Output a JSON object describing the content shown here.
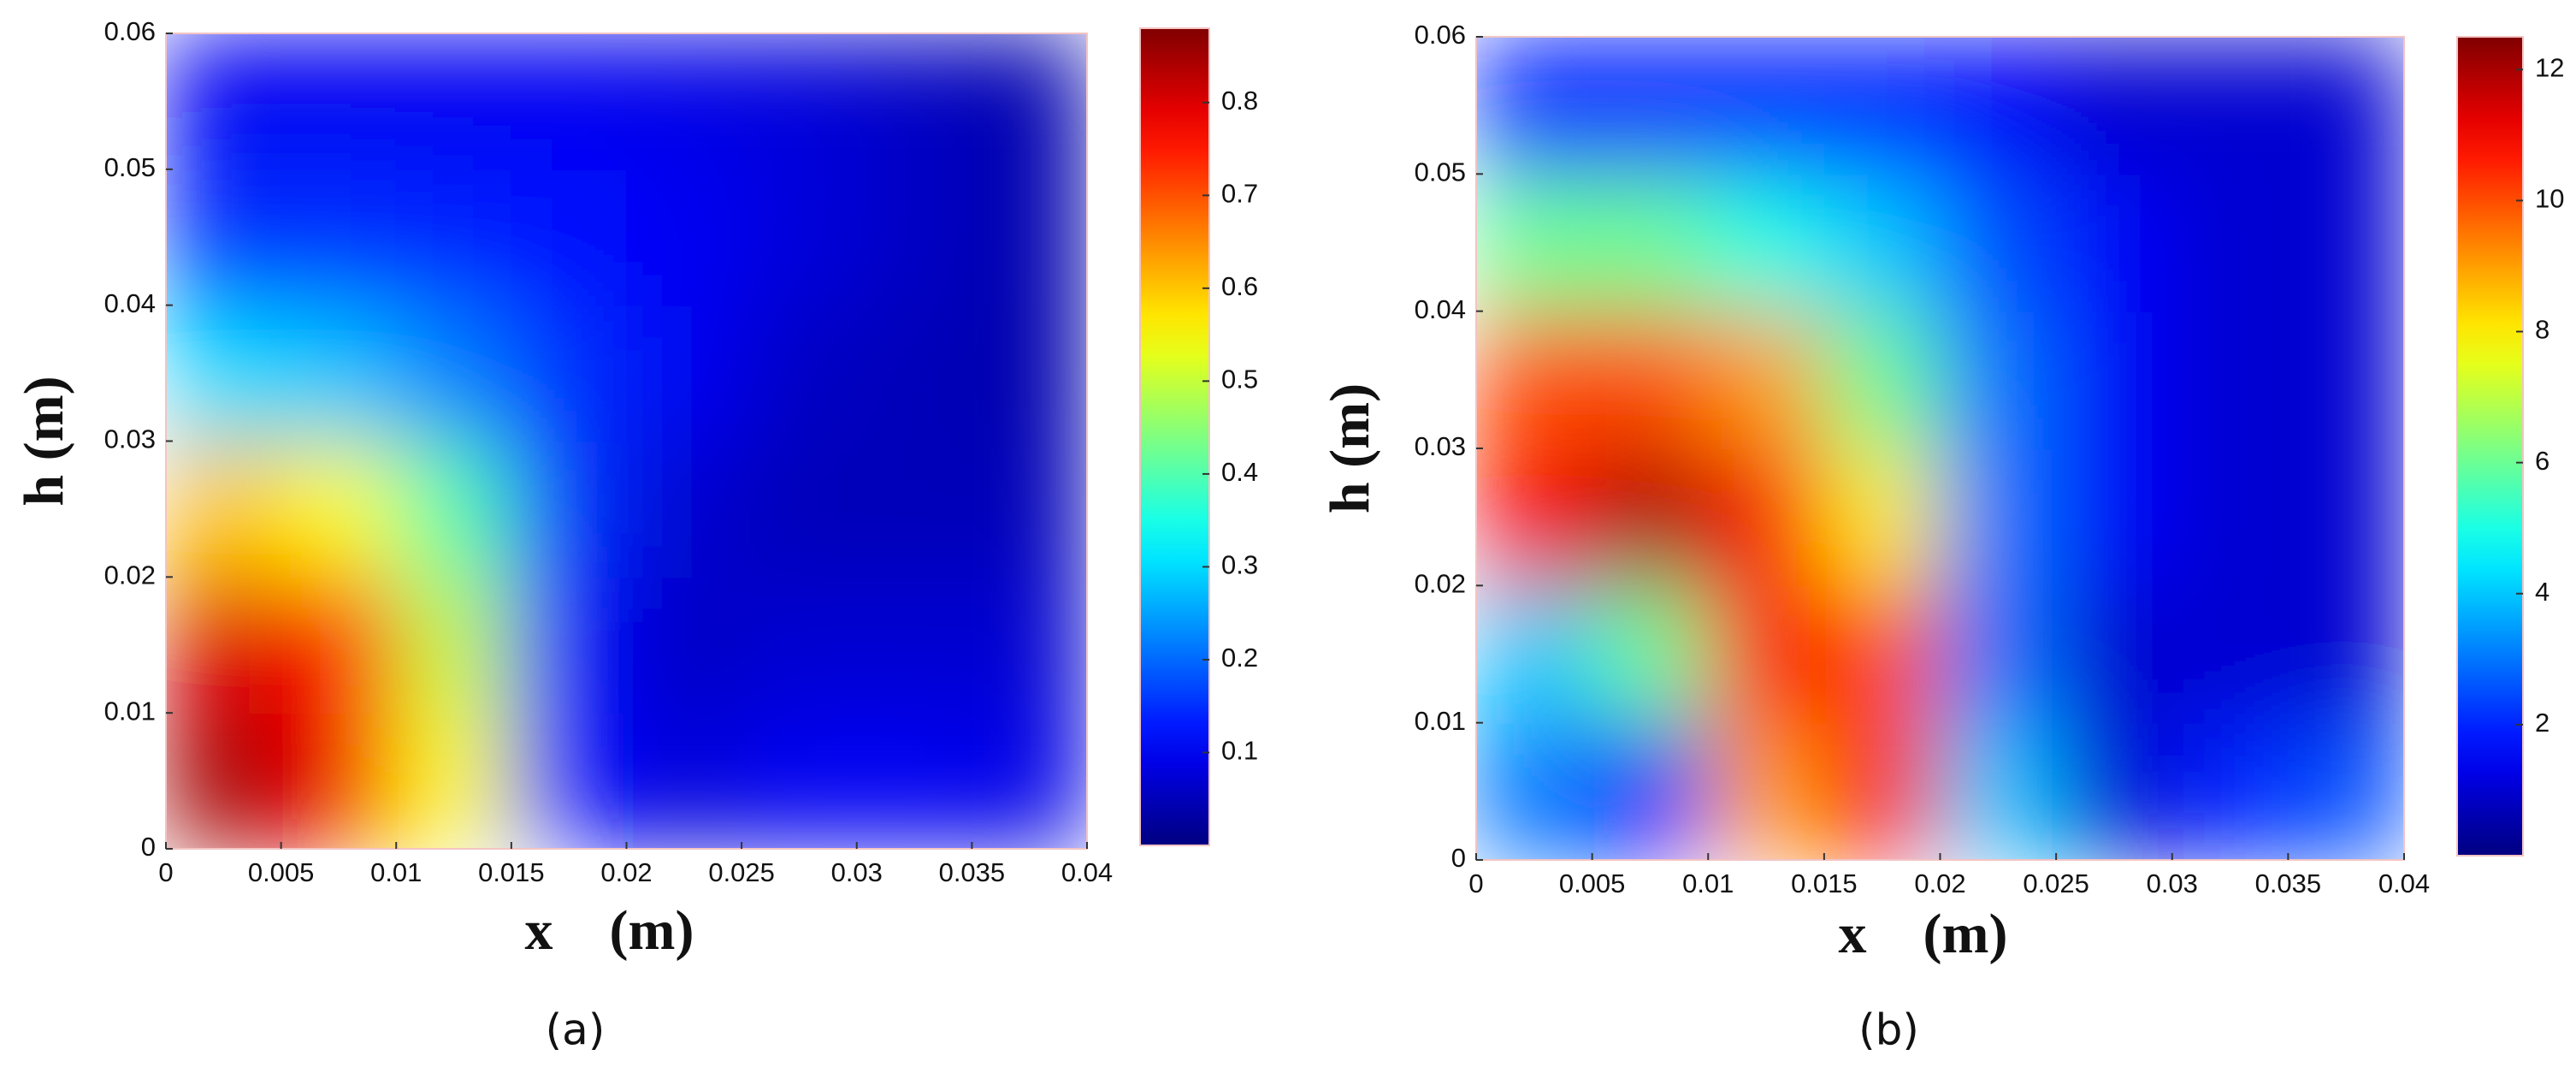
{
  "chart_data": [
    {
      "type": "heatmap",
      "colormap": "jet",
      "xlabel": "x    (m)",
      "ylabel": "h (m)",
      "caption": "(a)",
      "x": [
        0.0025,
        0.0075,
        0.0125,
        0.0175,
        0.0225,
        0.0275,
        0.0325,
        0.0375
      ],
      "y": [
        0.005,
        0.015,
        0.025,
        0.035,
        0.045,
        0.055
      ],
      "z": [
        [
          0.85,
          0.78,
          0.55,
          0.12,
          0.08,
          0.1,
          0.1,
          0.09
        ],
        [
          0.8,
          0.75,
          0.5,
          0.12,
          0.06,
          0.07,
          0.07,
          0.07
        ],
        [
          0.6,
          0.55,
          0.4,
          0.15,
          0.07,
          0.05,
          0.05,
          0.05
        ],
        [
          0.3,
          0.28,
          0.22,
          0.15,
          0.1,
          0.06,
          0.05,
          0.04
        ],
        [
          0.15,
          0.15,
          0.14,
          0.12,
          0.1,
          0.08,
          0.06,
          0.04
        ],
        [
          0.1,
          0.1,
          0.1,
          0.1,
          0.09,
          0.08,
          0.06,
          0.04
        ]
      ],
      "xlim": [
        0,
        0.04
      ],
      "ylim": [
        0,
        0.06
      ],
      "xticks": [
        0,
        0.005,
        0.01,
        0.015,
        0.02,
        0.025,
        0.03,
        0.035,
        0.04
      ],
      "yticks": [
        0,
        0.01,
        0.02,
        0.03,
        0.04,
        0.05,
        0.06
      ],
      "clim": [
        0,
        0.88
      ],
      "cticks": [
        0.1,
        0.2,
        0.3,
        0.4,
        0.5,
        0.6,
        0.7,
        0.8
      ]
    },
    {
      "type": "heatmap",
      "colormap": "jet",
      "xlabel": "x    (m)",
      "ylabel": "h (m)",
      "caption": "(b)",
      "x": [
        0.0025,
        0.0075,
        0.0125,
        0.0175,
        0.0225,
        0.0275,
        0.0325,
        0.0375
      ],
      "y": [
        0.005,
        0.015,
        0.025,
        0.035,
        0.045,
        0.055
      ],
      "z": [
        [
          3,
          2,
          9,
          11,
          4,
          1,
          2,
          2.5
        ],
        [
          4,
          6,
          11,
          10,
          3,
          1,
          1,
          1
        ],
        [
          11,
          12,
          11,
          8,
          3,
          1.5,
          1,
          1
        ],
        [
          10,
          10,
          9,
          6,
          3,
          1.5,
          1,
          1
        ],
        [
          6,
          6,
          5,
          4,
          2.5,
          1.5,
          1,
          1
        ],
        [
          2,
          2,
          2,
          2,
          1.5,
          1,
          1,
          1
        ]
      ],
      "xlim": [
        0,
        0.04
      ],
      "ylim": [
        0,
        0.06
      ],
      "xticks": [
        0,
        0.005,
        0.01,
        0.015,
        0.02,
        0.025,
        0.03,
        0.035,
        0.04
      ],
      "yticks": [
        0,
        0.01,
        0.02,
        0.03,
        0.04,
        0.05,
        0.06
      ],
      "clim": [
        0,
        12.5
      ],
      "cticks": [
        2,
        4,
        6,
        8,
        10,
        12
      ]
    }
  ]
}
